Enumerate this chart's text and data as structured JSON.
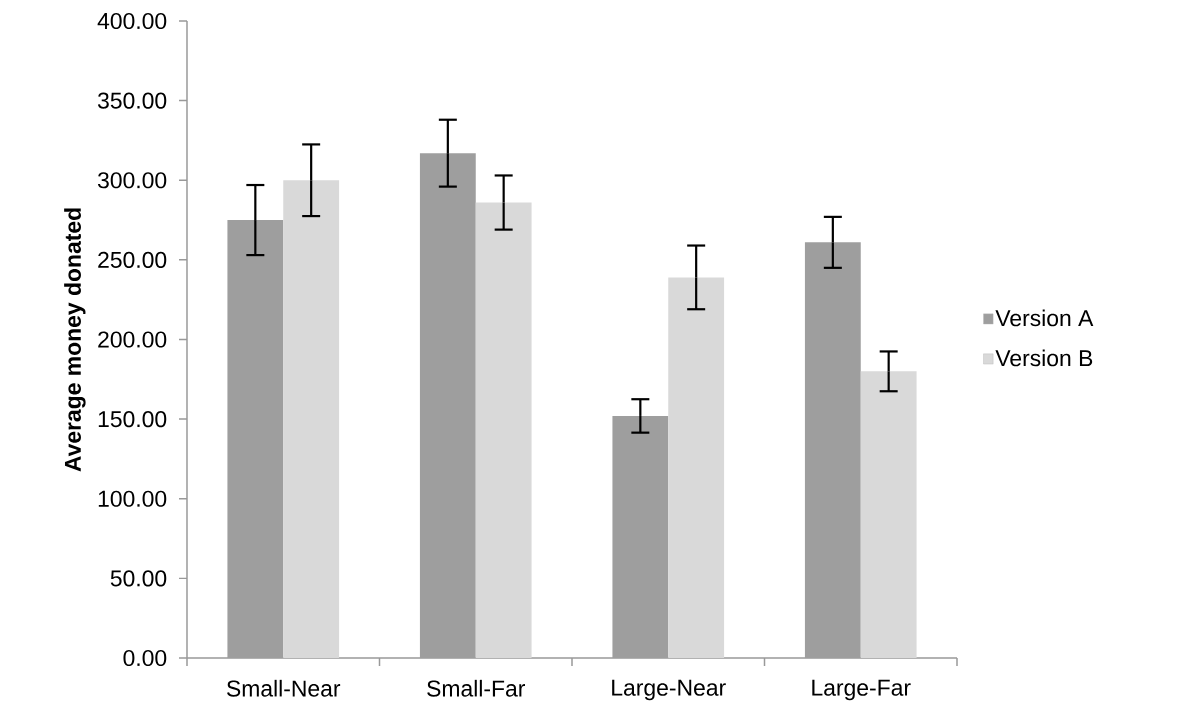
{
  "chart_data": {
    "type": "bar",
    "ylabel": "Average money donated",
    "categories": [
      "Small-Near",
      "Small-Far",
      "Large-Near",
      "Large-Far"
    ],
    "series": [
      {
        "name": "Version A",
        "color": "#9e9e9e",
        "values": [
          275,
          317,
          152,
          261
        ],
        "errors": [
          22,
          21,
          10.5,
          16
        ]
      },
      {
        "name": "Version B",
        "color": "#d9d9d9",
        "values": [
          300,
          286,
          239,
          180
        ],
        "errors": [
          22.5,
          17,
          20,
          12.5
        ]
      }
    ],
    "ylim": [
      0,
      400
    ],
    "yticks": [
      {
        "value": 0,
        "label": "0.00"
      },
      {
        "value": 50,
        "label": "50.00"
      },
      {
        "value": 100,
        "label": "100.00"
      },
      {
        "value": 150,
        "label": "150.00"
      },
      {
        "value": 200,
        "label": "200.00"
      },
      {
        "value": 250,
        "label": "250.00"
      },
      {
        "value": 300,
        "label": "300.00"
      },
      {
        "value": 350,
        "label": "350.00"
      },
      {
        "value": 400,
        "label": "400.00"
      }
    ],
    "grid": false,
    "legend": "right"
  }
}
